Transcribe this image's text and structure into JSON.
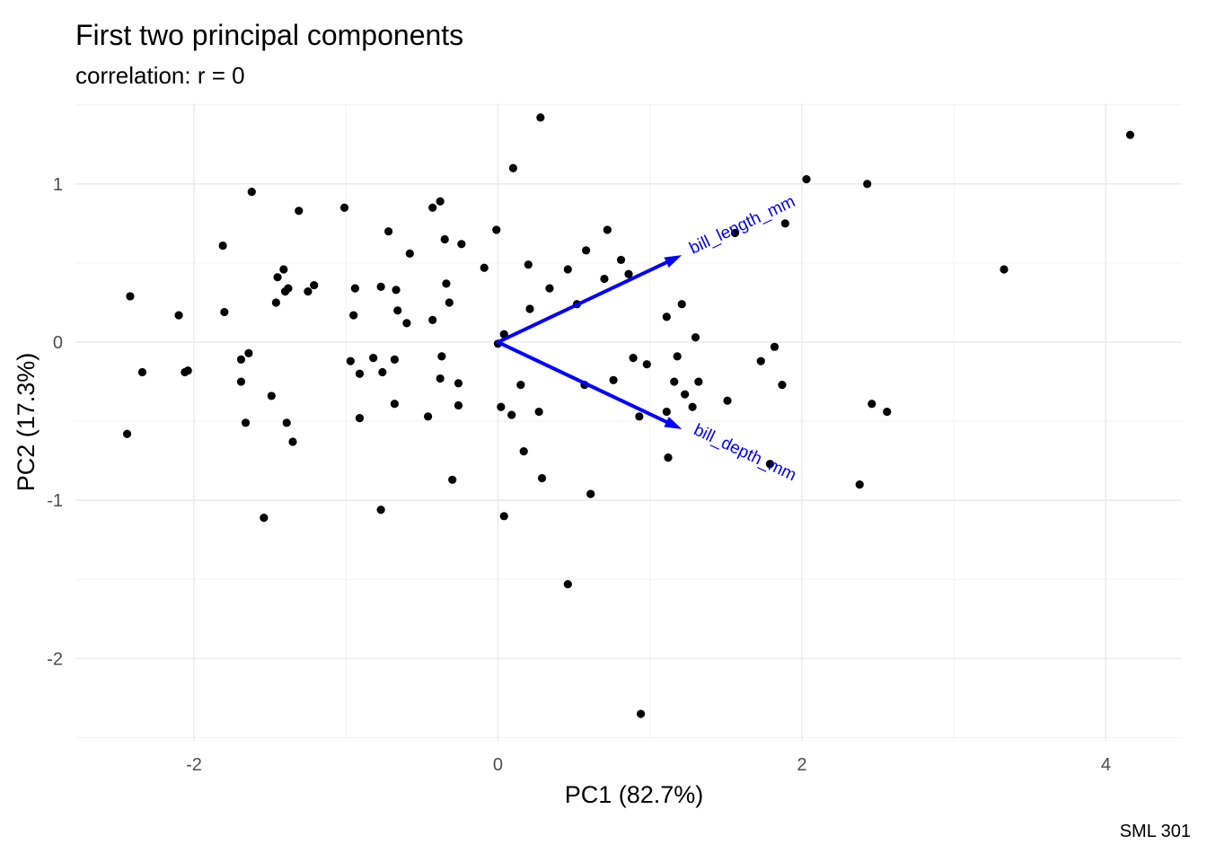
{
  "chart_data": {
    "type": "scatter",
    "title": "First two principal components",
    "subtitle": "correlation: r = 0",
    "xlabel": "PC1 (82.7%)",
    "ylabel": "PC2 (17.3%)",
    "caption": "SML 301",
    "xlim": [
      -2.78,
      4.5
    ],
    "ylim": [
      -2.52,
      1.51
    ],
    "xticks": [
      -2,
      0,
      2,
      4
    ],
    "yticks": [
      -2,
      -1,
      0,
      1
    ],
    "xtick_labels": [
      "-2",
      "0",
      "2",
      "4"
    ],
    "ytick_labels": [
      "-2",
      "-1",
      "0",
      "1"
    ],
    "grid": true,
    "point_color": "#000000",
    "arrow_color": "#0000ff",
    "points": [
      [
        -2.42,
        0.29
      ],
      [
        -2.44,
        -0.58
      ],
      [
        -2.34,
        -0.19
      ],
      [
        -2.1,
        0.17
      ],
      [
        -2.06,
        -0.19
      ],
      [
        -2.04,
        -0.18
      ],
      [
        -1.81,
        0.61
      ],
      [
        -1.8,
        0.19
      ],
      [
        -1.62,
        0.95
      ],
      [
        -1.69,
        -0.11
      ],
      [
        -1.69,
        -0.25
      ],
      [
        -1.64,
        -0.07
      ],
      [
        -1.66,
        -0.51
      ],
      [
        -1.54,
        -1.11
      ],
      [
        -1.49,
        -0.34
      ],
      [
        -1.45,
        0.41
      ],
      [
        -1.46,
        0.25
      ],
      [
        -1.41,
        0.46
      ],
      [
        -1.4,
        0.32
      ],
      [
        -1.38,
        0.34
      ],
      [
        -1.39,
        -0.51
      ],
      [
        -1.35,
        -0.63
      ],
      [
        -1.31,
        0.83
      ],
      [
        -1.25,
        0.32
      ],
      [
        -1.21,
        0.36
      ],
      [
        -1.01,
        0.85
      ],
      [
        -0.97,
        -0.12
      ],
      [
        -0.95,
        0.17
      ],
      [
        -0.94,
        0.34
      ],
      [
        -0.91,
        -0.2
      ],
      [
        -0.91,
        -0.48
      ],
      [
        -0.82,
        -0.1
      ],
      [
        -0.77,
        0.35
      ],
      [
        -0.76,
        -0.19
      ],
      [
        -0.77,
        -1.06
      ],
      [
        -0.72,
        0.7
      ],
      [
        -0.68,
        -0.11
      ],
      [
        -0.68,
        -0.39
      ],
      [
        -0.67,
        0.33
      ],
      [
        -0.66,
        0.2
      ],
      [
        -0.6,
        0.12
      ],
      [
        -0.58,
        0.56
      ],
      [
        -0.46,
        -0.47
      ],
      [
        -0.43,
        0.14
      ],
      [
        -0.43,
        0.85
      ],
      [
        -0.38,
        0.89
      ],
      [
        -0.38,
        -0.23
      ],
      [
        -0.37,
        -0.09
      ],
      [
        -0.35,
        0.65
      ],
      [
        -0.34,
        0.37
      ],
      [
        -0.32,
        0.25
      ],
      [
        -0.3,
        -0.87
      ],
      [
        -0.26,
        -0.26
      ],
      [
        -0.26,
        -0.4
      ],
      [
        -0.24,
        0.62
      ],
      [
        -0.09,
        0.47
      ],
      [
        -0.01,
        0.71
      ],
      [
        0.0,
        -0.01
      ],
      [
        0.02,
        -0.41
      ],
      [
        0.04,
        0.05
      ],
      [
        0.04,
        -1.1
      ],
      [
        0.09,
        -0.46
      ],
      [
        0.1,
        1.1
      ],
      [
        0.15,
        -0.27
      ],
      [
        0.17,
        -0.69
      ],
      [
        0.2,
        0.49
      ],
      [
        0.21,
        0.21
      ],
      [
        0.27,
        -0.44
      ],
      [
        0.28,
        1.42
      ],
      [
        0.29,
        -0.86
      ],
      [
        0.34,
        0.34
      ],
      [
        0.46,
        0.46
      ],
      [
        0.46,
        -1.53
      ],
      [
        0.52,
        0.24
      ],
      [
        0.57,
        -0.27
      ],
      [
        0.58,
        0.58
      ],
      [
        0.61,
        -0.96
      ],
      [
        0.7,
        0.4
      ],
      [
        0.72,
        0.71
      ],
      [
        0.76,
        -0.24
      ],
      [
        0.81,
        0.52
      ],
      [
        0.86,
        0.43
      ],
      [
        0.89,
        -0.1
      ],
      [
        0.93,
        -0.47
      ],
      [
        0.94,
        -2.35
      ],
      [
        0.98,
        -0.14
      ],
      [
        1.11,
        -0.44
      ],
      [
        1.11,
        0.16
      ],
      [
        1.12,
        -0.73
      ],
      [
        1.16,
        -0.25
      ],
      [
        1.18,
        -0.09
      ],
      [
        1.21,
        0.24
      ],
      [
        1.23,
        -0.33
      ],
      [
        1.28,
        -0.41
      ],
      [
        1.3,
        0.03
      ],
      [
        1.32,
        -0.25
      ],
      [
        1.51,
        -0.37
      ],
      [
        1.56,
        0.69
      ],
      [
        1.73,
        -0.12
      ],
      [
        1.79,
        -0.77
      ],
      [
        1.82,
        -0.03
      ],
      [
        1.87,
        -0.27
      ],
      [
        1.89,
        0.75
      ],
      [
        2.03,
        1.03
      ],
      [
        2.38,
        -0.9
      ],
      [
        2.43,
        1.0
      ],
      [
        2.46,
        -0.39
      ],
      [
        2.56,
        -0.44
      ],
      [
        3.33,
        0.46
      ],
      [
        4.16,
        1.31
      ]
    ],
    "loadings": [
      {
        "name": "bill_length_mm",
        "x": 1.21,
        "y": 0.55
      },
      {
        "name": "bill_depth_mm",
        "x": 1.21,
        "y": -0.55
      }
    ]
  }
}
